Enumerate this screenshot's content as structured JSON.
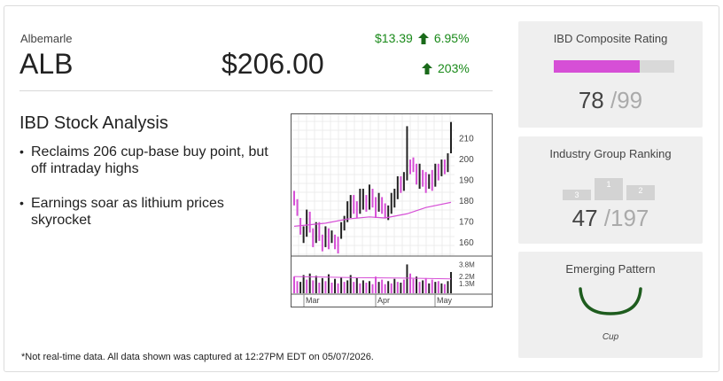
{
  "quote": {
    "company": "Albemarle",
    "ticker": "ALB",
    "price": "$206.00",
    "change": "$13.39",
    "change_pct": "6.95%",
    "ytd_pct": "203%",
    "up_color": "#1a8a1a",
    "up_icon": "up-arrow-icon"
  },
  "analysis": {
    "title": "IBD Stock Analysis",
    "bullets": [
      "Reclaims 206 cup-base buy point, but off intraday highs",
      "Earnings soar as lithium prices skyrocket"
    ]
  },
  "chart_data": {
    "type": "bar",
    "price_axis_ticks": [
      "210",
      "200",
      "190",
      "180",
      "170",
      "160"
    ],
    "price_ylim": [
      155,
      220
    ],
    "volume_axis_ticks": [
      "3.8M",
      "2.2M",
      "1.3M"
    ],
    "x_tick_labels": [
      "Mar",
      "Apr",
      "May"
    ],
    "up_color": "#222222",
    "down_color": "#d64fd6",
    "ma_color": "#d64fd6",
    "price_bars": [
      {
        "l": 178,
        "h": 185,
        "up": false
      },
      {
        "l": 173,
        "h": 181,
        "up": false
      },
      {
        "l": 164,
        "h": 172,
        "up": false
      },
      {
        "l": 160,
        "h": 168,
        "up": true
      },
      {
        "l": 163,
        "h": 176,
        "up": true
      },
      {
        "l": 165,
        "h": 175,
        "up": false
      },
      {
        "l": 158,
        "h": 167,
        "up": false
      },
      {
        "l": 160,
        "h": 170,
        "up": true
      },
      {
        "l": 161,
        "h": 170,
        "up": false
      },
      {
        "l": 156,
        "h": 164,
        "up": false
      },
      {
        "l": 158,
        "h": 168,
        "up": true
      },
      {
        "l": 157,
        "h": 167,
        "up": false
      },
      {
        "l": 160,
        "h": 166,
        "up": true
      },
      {
        "l": 157,
        "h": 164,
        "up": false
      },
      {
        "l": 155,
        "h": 163,
        "up": false
      },
      {
        "l": 162,
        "h": 170,
        "up": true
      },
      {
        "l": 166,
        "h": 173,
        "up": true
      },
      {
        "l": 170,
        "h": 180,
        "up": true
      },
      {
        "l": 172,
        "h": 183,
        "up": true
      },
      {
        "l": 174,
        "h": 183,
        "up": false
      },
      {
        "l": 172,
        "h": 180,
        "up": false
      },
      {
        "l": 174,
        "h": 186,
        "up": true
      },
      {
        "l": 176,
        "h": 186,
        "up": true
      },
      {
        "l": 175,
        "h": 183,
        "up": false
      },
      {
        "l": 176,
        "h": 188,
        "up": true
      },
      {
        "l": 177,
        "h": 186,
        "up": false
      },
      {
        "l": 172,
        "h": 182,
        "up": false
      },
      {
        "l": 175,
        "h": 184,
        "up": true
      },
      {
        "l": 174,
        "h": 182,
        "up": false
      },
      {
        "l": 172,
        "h": 179,
        "up": false
      },
      {
        "l": 171,
        "h": 178,
        "up": true
      },
      {
        "l": 174,
        "h": 184,
        "up": true
      },
      {
        "l": 177,
        "h": 186,
        "up": true
      },
      {
        "l": 181,
        "h": 192,
        "up": true
      },
      {
        "l": 184,
        "h": 192,
        "up": false
      },
      {
        "l": 185,
        "h": 194,
        "up": true
      },
      {
        "l": 190,
        "h": 216,
        "up": true
      },
      {
        "l": 193,
        "h": 200,
        "up": false
      },
      {
        "l": 194,
        "h": 201,
        "up": false
      },
      {
        "l": 188,
        "h": 198,
        "up": false
      },
      {
        "l": 186,
        "h": 198,
        "up": true
      },
      {
        "l": 187,
        "h": 195,
        "up": false
      },
      {
        "l": 184,
        "h": 194,
        "up": false
      },
      {
        "l": 186,
        "h": 193,
        "up": true
      },
      {
        "l": 185,
        "h": 195,
        "up": false
      },
      {
        "l": 187,
        "h": 198,
        "up": true
      },
      {
        "l": 190,
        "h": 198,
        "up": false
      },
      {
        "l": 192,
        "h": 200,
        "up": true
      },
      {
        "l": 193,
        "h": 200,
        "up": false
      },
      {
        "l": 194,
        "h": 203,
        "up": true
      },
      {
        "l": 203,
        "h": 218,
        "up": true
      }
    ],
    "moving_average": [
      [
        0,
        168
      ],
      [
        10,
        169.5
      ],
      [
        17,
        171.5
      ],
      [
        24,
        172.5
      ],
      [
        29,
        172
      ],
      [
        36,
        174
      ],
      [
        42,
        177
      ],
      [
        50,
        179.5
      ]
    ],
    "volume_bars": [
      [
        2.2,
        false
      ],
      [
        1.6,
        false
      ],
      [
        1.5,
        true
      ],
      [
        2.4,
        true
      ],
      [
        1.8,
        false
      ],
      [
        2.6,
        true
      ],
      [
        1.7,
        false
      ],
      [
        2.3,
        true
      ],
      [
        1.4,
        false
      ],
      [
        2.0,
        true
      ],
      [
        1.6,
        false
      ],
      [
        2.5,
        true
      ],
      [
        1.4,
        false
      ],
      [
        1.9,
        true
      ],
      [
        1.3,
        false
      ],
      [
        2.1,
        true
      ],
      [
        1.5,
        false
      ],
      [
        1.7,
        true
      ],
      [
        2.4,
        true
      ],
      [
        1.5,
        false
      ],
      [
        2.0,
        true
      ],
      [
        1.3,
        false
      ],
      [
        1.7,
        true
      ],
      [
        1.4,
        false
      ],
      [
        1.6,
        true
      ],
      [
        1.2,
        false
      ],
      [
        2.2,
        false
      ],
      [
        1.5,
        true
      ],
      [
        1.8,
        false
      ],
      [
        1.2,
        false
      ],
      [
        1.6,
        true
      ],
      [
        1.3,
        false
      ],
      [
        1.9,
        true
      ],
      [
        1.5,
        false
      ],
      [
        1.4,
        true
      ],
      [
        1.8,
        false
      ],
      [
        3.8,
        true
      ],
      [
        2.6,
        false
      ],
      [
        1.9,
        false
      ],
      [
        2.2,
        true
      ],
      [
        1.5,
        false
      ],
      [
        1.7,
        true
      ],
      [
        2.0,
        false
      ],
      [
        1.3,
        true
      ],
      [
        1.8,
        false
      ],
      [
        1.5,
        true
      ],
      [
        1.6,
        false
      ],
      [
        1.3,
        true
      ],
      [
        1.2,
        false
      ],
      [
        1.6,
        true
      ],
      [
        2.8,
        true
      ]
    ],
    "volume_avg": [
      [
        0,
        2.2
      ],
      [
        20,
        2.05
      ],
      [
        36,
        2.0
      ],
      [
        50,
        1.9
      ]
    ],
    "volume_ylim": [
      0,
      4.2
    ]
  },
  "footnote": "*Not real-time data. All data shown was captured at 12:27PM EDT on 05/07/2026.",
  "composite": {
    "title": "IBD Composite Rating",
    "value": "78",
    "max": "/99",
    "fill_fraction": 0.71,
    "bar_color": "#d64fd6"
  },
  "group": {
    "title": "Industry Group Ranking",
    "value": "47",
    "max": "/197",
    "podium": [
      "3",
      "1",
      "2"
    ]
  },
  "pattern": {
    "title": "Emerging Pattern",
    "name": "Cup",
    "icon": "cup-pattern-icon",
    "icon_color": "#1e5c1e"
  }
}
